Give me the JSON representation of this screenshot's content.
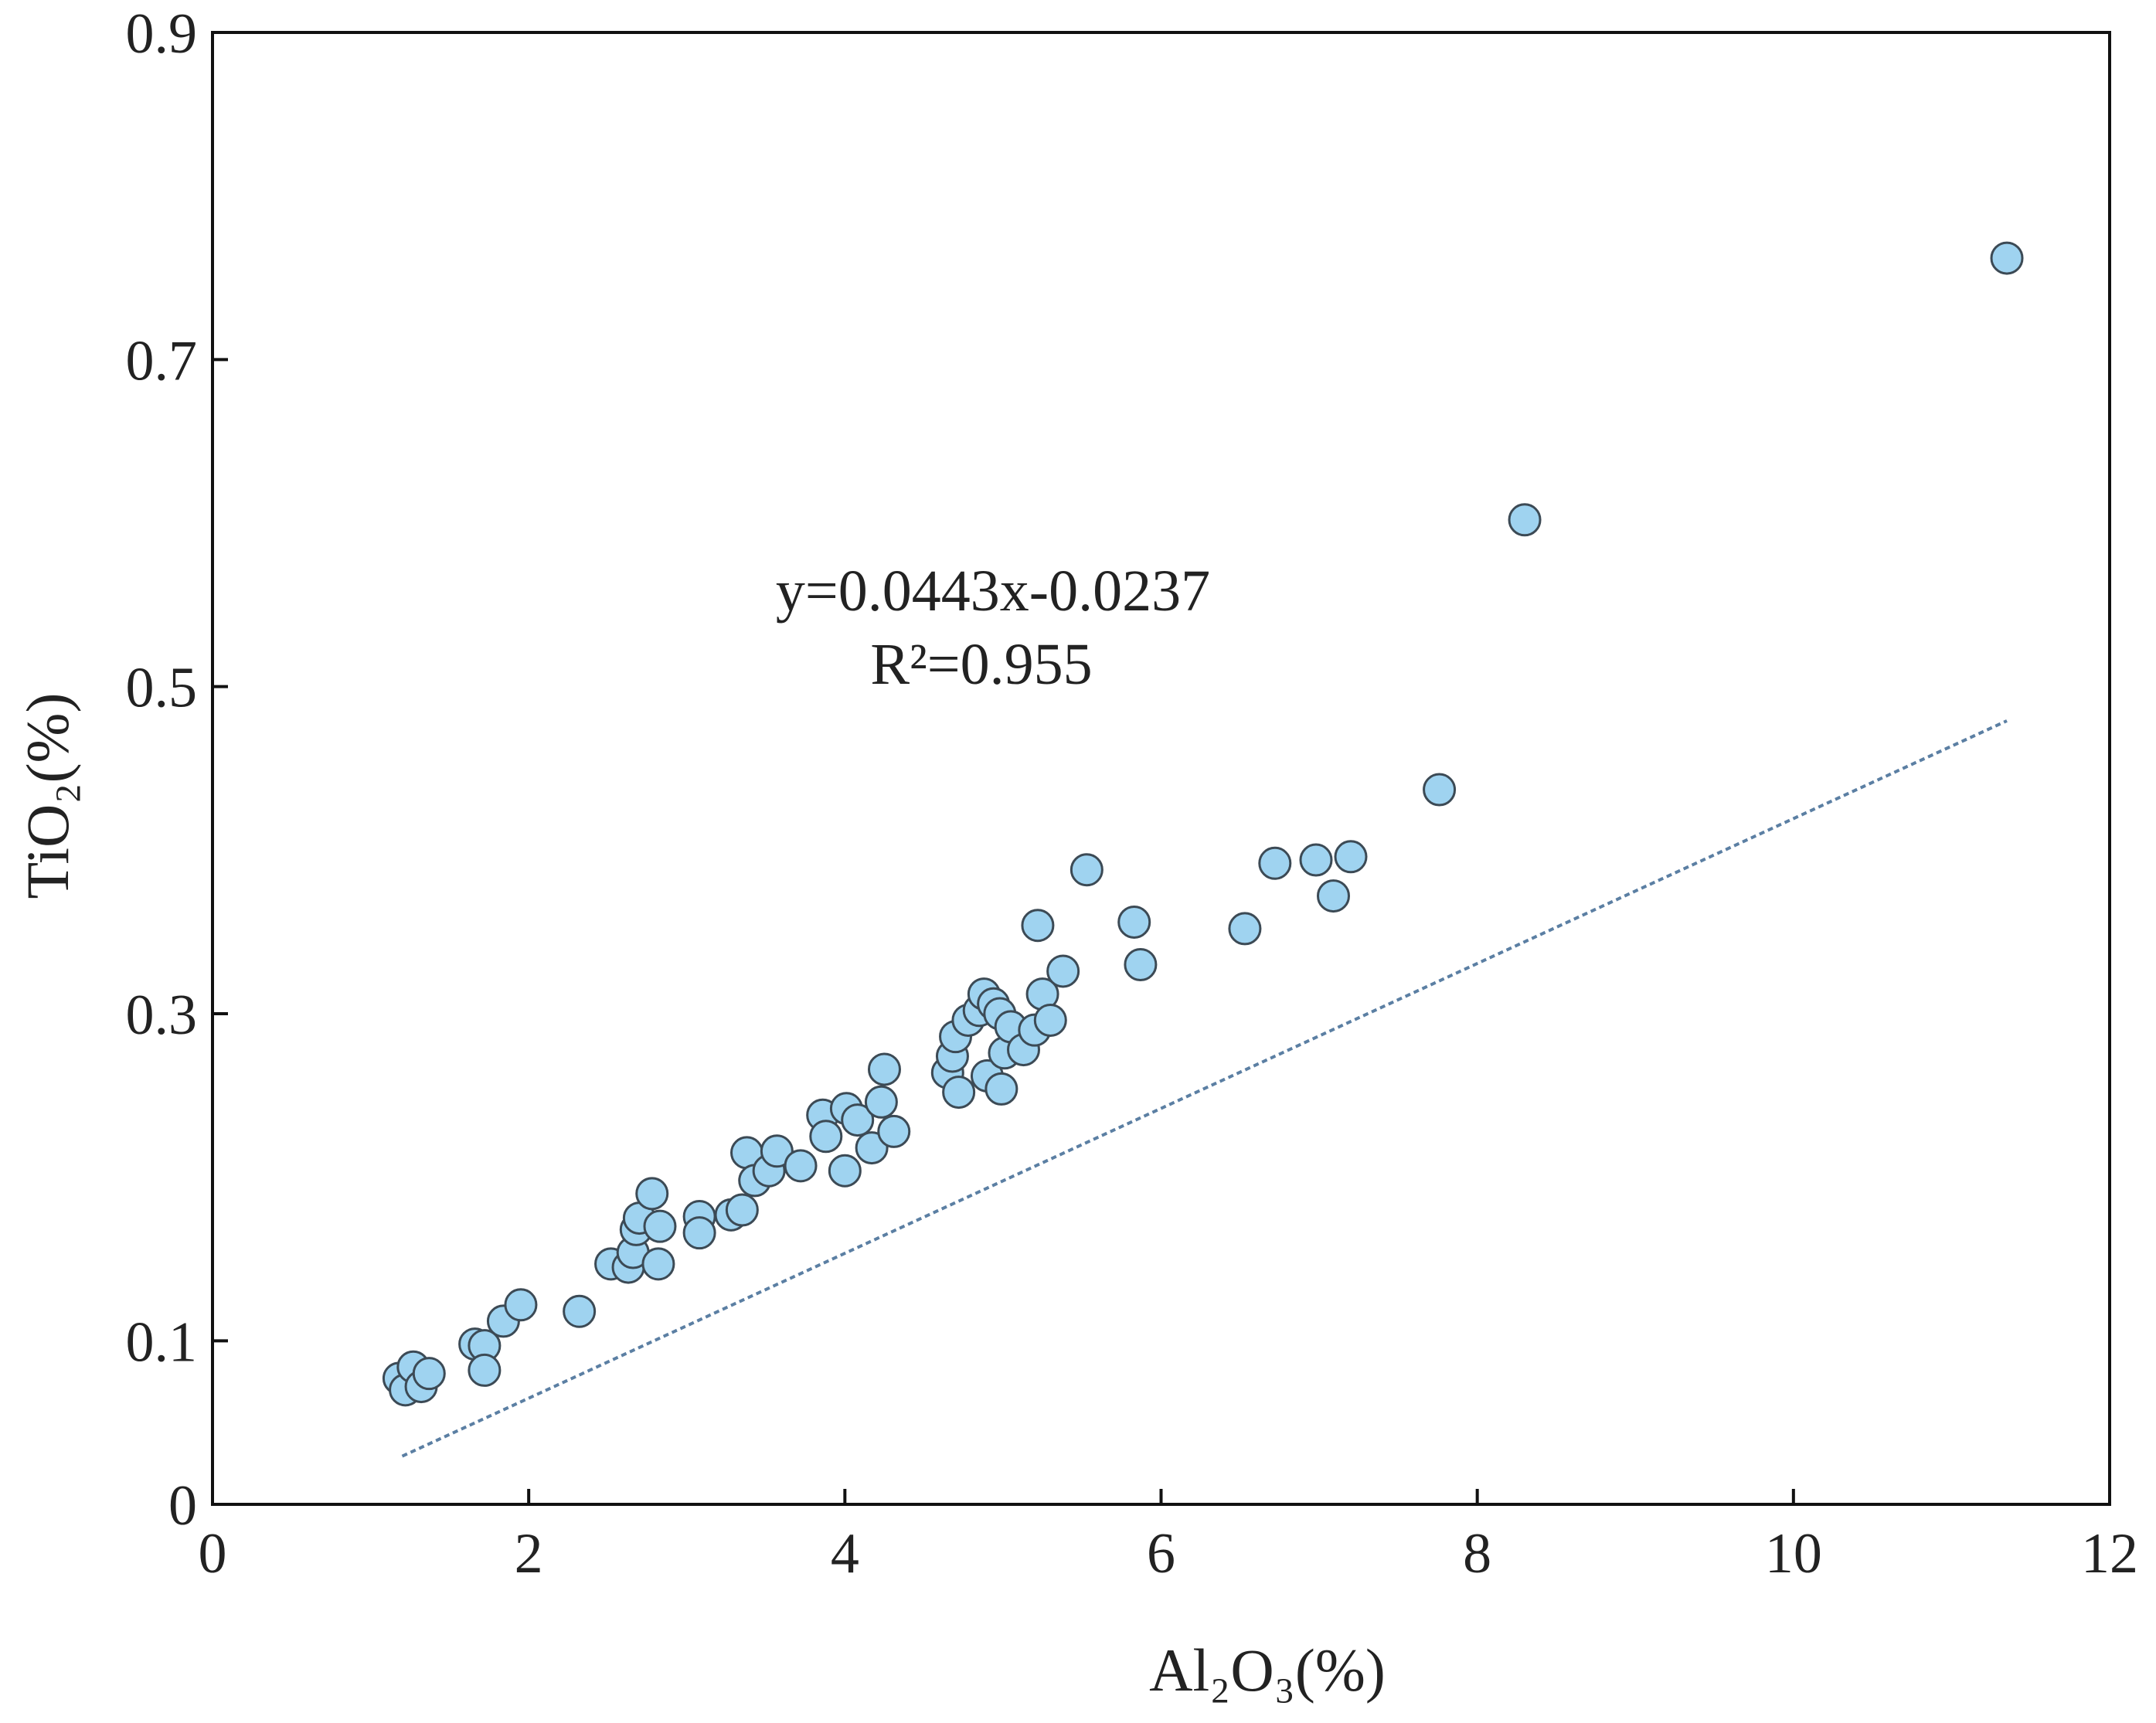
{
  "chart_data": {
    "type": "scatter",
    "title": "",
    "xlabel": "Al₂O₃(%)",
    "ylabel": "TiO₂(%)",
    "xlim": [
      0,
      12
    ],
    "ylim": [
      0,
      0.9
    ],
    "xticks": [
      0,
      2,
      4,
      6,
      8,
      10,
      12
    ],
    "yticks": [
      0,
      0.1,
      0.3,
      0.5,
      0.7,
      0.9
    ],
    "grid": false,
    "colors": {
      "marker_fill": "#9fd3f0",
      "marker_edge": "#3c4a55",
      "trendline": "#5b7fa3",
      "axis": "#111111"
    },
    "trendline": {
      "slope": 0.0443,
      "intercept": -0.0237,
      "x_range": [
        1.2,
        11.35
      ]
    },
    "annotations": {
      "equation": "y=0.0443x-0.0237",
      "r_squared": "R²=0.955"
    },
    "series": [
      {
        "name": "samples",
        "points": [
          [
            1.18,
            0.077
          ],
          [
            1.22,
            0.07
          ],
          [
            1.27,
            0.084
          ],
          [
            1.32,
            0.072
          ],
          [
            1.37,
            0.08
          ],
          [
            1.66,
            0.098
          ],
          [
            1.72,
            0.097
          ],
          [
            1.72,
            0.082
          ],
          [
            1.84,
            0.112
          ],
          [
            1.95,
            0.122
          ],
          [
            2.32,
            0.118
          ],
          [
            2.52,
            0.147
          ],
          [
            2.63,
            0.145
          ],
          [
            2.66,
            0.154
          ],
          [
            2.68,
            0.168
          ],
          [
            2.7,
            0.175
          ],
          [
            2.78,
            0.19
          ],
          [
            2.82,
            0.147
          ],
          [
            2.83,
            0.17
          ],
          [
            3.08,
            0.176
          ],
          [
            3.08,
            0.166
          ],
          [
            3.28,
            0.177
          ],
          [
            3.35,
            0.18
          ],
          [
            3.38,
            0.215
          ],
          [
            3.43,
            0.198
          ],
          [
            3.52,
            0.204
          ],
          [
            3.57,
            0.216
          ],
          [
            3.72,
            0.207
          ],
          [
            3.86,
            0.238
          ],
          [
            3.88,
            0.225
          ],
          [
            4.0,
            0.204
          ],
          [
            4.01,
            0.242
          ],
          [
            4.08,
            0.235
          ],
          [
            4.17,
            0.218
          ],
          [
            4.23,
            0.246
          ],
          [
            4.25,
            0.266
          ],
          [
            4.31,
            0.228
          ],
          [
            4.65,
            0.264
          ],
          [
            4.68,
            0.274
          ],
          [
            4.7,
            0.286
          ],
          [
            4.72,
            0.252
          ],
          [
            4.78,
            0.296
          ],
          [
            4.85,
            0.302
          ],
          [
            4.88,
            0.312
          ],
          [
            4.9,
            0.262
          ],
          [
            4.94,
            0.306
          ],
          [
            4.98,
            0.3
          ],
          [
            4.99,
            0.254
          ],
          [
            5.01,
            0.276
          ],
          [
            5.05,
            0.292
          ],
          [
            5.13,
            0.278
          ],
          [
            5.2,
            0.29
          ],
          [
            5.22,
            0.354
          ],
          [
            5.25,
            0.312
          ],
          [
            5.3,
            0.296
          ],
          [
            5.38,
            0.326
          ],
          [
            5.53,
            0.388
          ],
          [
            5.83,
            0.356
          ],
          [
            5.87,
            0.33
          ],
          [
            6.53,
            0.352
          ],
          [
            6.72,
            0.392
          ],
          [
            6.98,
            0.394
          ],
          [
            7.09,
            0.372
          ],
          [
            7.2,
            0.396
          ],
          [
            7.76,
            0.437
          ],
          [
            8.3,
            0.602
          ],
          [
            11.35,
            0.762
          ]
        ]
      }
    ]
  }
}
